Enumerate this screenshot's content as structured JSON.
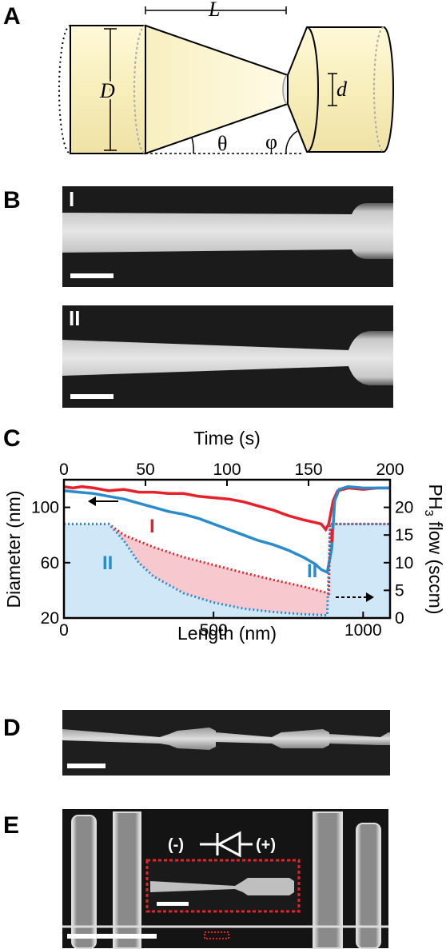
{
  "panels": {
    "A": {
      "letter": "A",
      "labels": {
        "L": "L",
        "D": "D",
        "d": "d",
        "theta": "θ",
        "phi": "φ"
      }
    },
    "B": {
      "letter": "B",
      "images": [
        {
          "label": "I"
        },
        {
          "label": "II"
        }
      ]
    },
    "C": {
      "letter": "C"
    },
    "D": {
      "letter": "D"
    },
    "E": {
      "letter": "E",
      "diode_minus": "(-)",
      "diode_plus": "(+)"
    }
  },
  "chart_data": {
    "type": "line",
    "top_axis": {
      "title": "Time (s)",
      "ticks": [
        0,
        50,
        100,
        150,
        200
      ],
      "lim": [
        0,
        200
      ]
    },
    "x": {
      "title": "Length (nm)",
      "ticks": [
        0,
        500,
        1000
      ],
      "lim": [
        0,
        1090
      ]
    },
    "y_left": {
      "title": "Diameter (nm)",
      "ticks": [
        20,
        60,
        100
      ],
      "lim": [
        20,
        120
      ]
    },
    "y_right": {
      "title_main": "PH",
      "title_sub": "3",
      "title_rest": " flow (sccm)",
      "ticks": [
        0,
        5,
        10,
        15,
        20
      ],
      "lim": [
        0,
        25
      ]
    },
    "series": [
      {
        "name": "I",
        "color": "#e8202a",
        "points": [
          [
            0,
            115
          ],
          [
            30,
            114
          ],
          [
            60,
            115
          ],
          [
            100,
            114
          ],
          [
            150,
            112
          ],
          [
            200,
            113
          ],
          [
            250,
            111
          ],
          [
            300,
            111
          ],
          [
            350,
            110
          ],
          [
            400,
            110
          ],
          [
            450,
            108
          ],
          [
            500,
            107
          ],
          [
            550,
            106
          ],
          [
            600,
            104
          ],
          [
            650,
            101
          ],
          [
            700,
            98
          ],
          [
            750,
            94
          ],
          [
            800,
            91
          ],
          [
            840,
            89
          ],
          [
            860,
            88
          ],
          [
            875,
            84
          ],
          [
            885,
            88
          ],
          [
            900,
            105
          ],
          [
            915,
            112
          ],
          [
            950,
            114
          ],
          [
            1000,
            113
          ],
          [
            1050,
            114
          ],
          [
            1090,
            114
          ]
        ]
      },
      {
        "name": "II",
        "color": "#2a8ccc",
        "points": [
          [
            0,
            112
          ],
          [
            50,
            111
          ],
          [
            100,
            110
          ],
          [
            150,
            108
          ],
          [
            200,
            106
          ],
          [
            250,
            103
          ],
          [
            300,
            100
          ],
          [
            350,
            97
          ],
          [
            400,
            95
          ],
          [
            450,
            92
          ],
          [
            500,
            88
          ],
          [
            550,
            84
          ],
          [
            600,
            80
          ],
          [
            650,
            76
          ],
          [
            700,
            73
          ],
          [
            750,
            69
          ],
          [
            800,
            64
          ],
          [
            840,
            59
          ],
          [
            860,
            55
          ],
          [
            880,
            53
          ],
          [
            895,
            70
          ],
          [
            905,
            105
          ],
          [
            920,
            113
          ],
          [
            950,
            115
          ],
          [
            1000,
            114
          ],
          [
            1050,
            114
          ],
          [
            1090,
            114
          ]
        ]
      },
      {
        "name": "I",
        "color": "#e8202a",
        "dashed": true,
        "axis": "right",
        "points": [
          [
            0,
            17
          ],
          [
            150,
            17
          ],
          [
            200,
            15
          ],
          [
            300,
            12.8
          ],
          [
            400,
            11
          ],
          [
            500,
            9.6
          ],
          [
            600,
            8.2
          ],
          [
            700,
            6.9
          ],
          [
            800,
            5.7
          ],
          [
            870,
            4.7
          ],
          [
            885,
            4.4
          ],
          [
            890,
            17
          ],
          [
            1090,
            17
          ]
        ]
      },
      {
        "name": "II",
        "color": "#2a8ccc",
        "dashed": true,
        "axis": "right",
        "points": [
          [
            0,
            17
          ],
          [
            150,
            17
          ],
          [
            200,
            14
          ],
          [
            250,
            10
          ],
          [
            300,
            7.5
          ],
          [
            400,
            4.5
          ],
          [
            500,
            2.8
          ],
          [
            600,
            1.7
          ],
          [
            700,
            1.1
          ],
          [
            800,
            0.7
          ],
          [
            880,
            0.5
          ],
          [
            890,
            17
          ],
          [
            1090,
            17
          ]
        ]
      }
    ]
  },
  "colors": {
    "light_blue_fill": "#cfe7f7",
    "pink_fill": "#f7c9cf",
    "cone_fill": "#fbf3c8",
    "sem_bg": "#1a1a1a"
  }
}
